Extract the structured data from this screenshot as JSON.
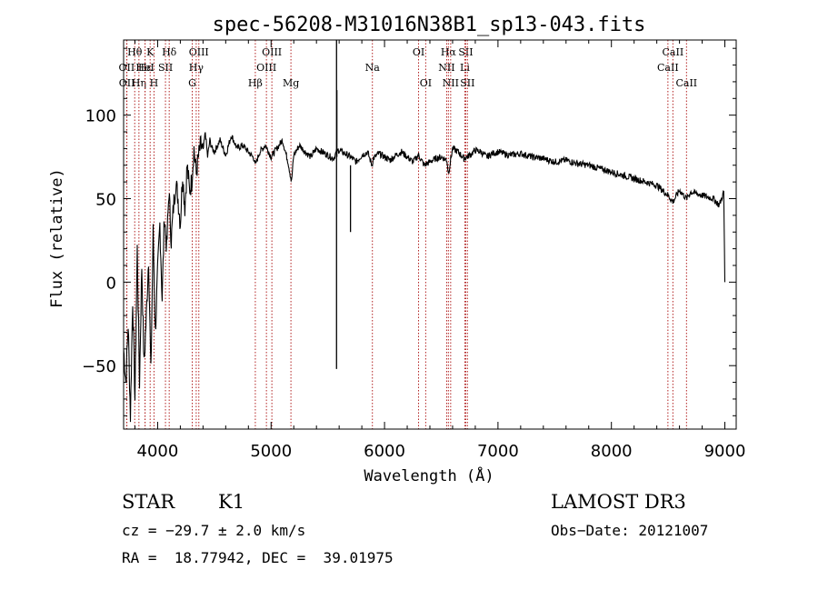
{
  "chart_data": {
    "type": "line",
    "title": "spec-56208-M31016N38B1_sp13-043.fits",
    "xlabel": "Wavelength (Å)",
    "ylabel": "Flux (relative)",
    "xlim": [
      3700,
      9100
    ],
    "ylim": [
      -88,
      145
    ],
    "xticks": [
      4000,
      5000,
      6000,
      7000,
      8000,
      9000
    ],
    "yticks": [
      -50,
      0,
      50,
      100
    ],
    "series": [
      {
        "name": "flux",
        "x": [
          3700,
          3720,
          3740,
          3760,
          3780,
          3800,
          3820,
          3840,
          3860,
          3880,
          3900,
          3920,
          3940,
          3960,
          3980,
          4000,
          4020,
          4040,
          4060,
          4080,
          4100,
          4120,
          4140,
          4160,
          4180,
          4200,
          4220,
          4240,
          4260,
          4280,
          4300,
          4320,
          4340,
          4360,
          4380,
          4400,
          4420,
          4440,
          4460,
          4480,
          4500,
          4550,
          4600,
          4650,
          4700,
          4750,
          4800,
          4850,
          4860,
          4900,
          4950,
          5000,
          5050,
          5100,
          5150,
          5180,
          5200,
          5250,
          5300,
          5350,
          5400,
          5450,
          5500,
          5550,
          5577,
          5600,
          5650,
          5700,
          5750,
          5800,
          5850,
          5890,
          5900,
          5950,
          6000,
          6050,
          6100,
          6150,
          6200,
          6250,
          6300,
          6350,
          6400,
          6450,
          6500,
          6550,
          6563,
          6600,
          6650,
          6700,
          6750,
          6800,
          6850,
          6900,
          6950,
          7000,
          7100,
          7200,
          7300,
          7400,
          7500,
          7600,
          7700,
          7800,
          7900,
          8000,
          8100,
          8200,
          8300,
          8400,
          8500,
          8542,
          8600,
          8662,
          8700,
          8800,
          8900,
          8950,
          8990,
          9000
        ],
        "values": [
          -40,
          -60,
          -25,
          -80,
          -10,
          -70,
          20,
          -60,
          10,
          -50,
          -20,
          15,
          -55,
          30,
          -30,
          5,
          35,
          -10,
          40,
          20,
          55,
          25,
          45,
          60,
          50,
          35,
          65,
          45,
          70,
          55,
          60,
          80,
          65,
          75,
          82,
          78,
          90,
          75,
          85,
          80,
          78,
          85,
          76,
          88,
          80,
          82,
          78,
          74,
          70,
          78,
          82,
          75,
          80,
          85,
          72,
          60,
          76,
          82,
          78,
          75,
          80,
          78,
          76,
          74,
          78,
          79,
          77,
          75,
          72,
          76,
          78,
          70,
          74,
          77,
          75,
          73,
          76,
          78,
          75,
          72,
          76,
          70,
          72,
          74,
          75,
          73,
          65,
          80,
          78,
          74,
          76,
          79,
          78,
          75,
          77,
          78,
          76,
          77,
          75,
          74,
          72,
          73,
          71,
          70,
          68,
          66,
          64,
          62,
          60,
          58,
          52,
          48,
          55,
          50,
          54,
          52,
          50,
          46,
          54,
          0
        ]
      }
    ],
    "emissions": [
      -52,
      115,
      115
    ],
    "lines": [
      {
        "label": "Hθ",
        "wl": 3798,
        "row": 1
      },
      {
        "label": "OII",
        "wl": 3727,
        "row": 2
      },
      {
        "label": "OII",
        "wl": 3729,
        "row": 3
      },
      {
        "label": "Hε",
        "wl": 3889,
        "row": 2
      },
      {
        "label": "Hη",
        "wl": 3835,
        "row": 3
      },
      {
        "label": "K",
        "wl": 3934,
        "row": 1
      },
      {
        "label": "HeI",
        "wl": 3889,
        "row": 2
      },
      {
        "label": "H",
        "wl": 3968,
        "row": 3
      },
      {
        "label": "SII",
        "wl": 4069,
        "row": 2
      },
      {
        "label": "Hδ",
        "wl": 4102,
        "row": 1
      },
      {
        "label": "OIII",
        "wl": 4363,
        "row": 1
      },
      {
        "label": "Hγ",
        "wl": 4340,
        "row": 2
      },
      {
        "label": "G",
        "wl": 4305,
        "row": 3
      },
      {
        "label": "Hβ",
        "wl": 4861,
        "row": 3
      },
      {
        "label": "OIII",
        "wl": 5007,
        "row": 1
      },
      {
        "label": "OIII",
        "wl": 4959,
        "row": 2
      },
      {
        "label": "Mg",
        "wl": 5175,
        "row": 3
      },
      {
        "label": "Na",
        "wl": 5893,
        "row": 2
      },
      {
        "label": "OI",
        "wl": 6300,
        "row": 1
      },
      {
        "label": "OI",
        "wl": 6363,
        "row": 3
      },
      {
        "label": "Hα",
        "wl": 6563,
        "row": 1
      },
      {
        "label": "NII",
        "wl": 6548,
        "row": 2
      },
      {
        "label": "NII",
        "wl": 6583,
        "row": 3
      },
      {
        "label": "SII",
        "wl": 6716,
        "row": 1
      },
      {
        "label": "Li",
        "wl": 6708,
        "row": 2
      },
      {
        "label": "SII",
        "wl": 6731,
        "row": 3
      },
      {
        "label": "CaII",
        "wl": 8542,
        "row": 1
      },
      {
        "label": "CaII",
        "wl": 8498,
        "row": 2
      },
      {
        "label": "CaII",
        "wl": 8662,
        "row": 3
      }
    ],
    "line_color": "#b22222"
  },
  "info": {
    "class": "STAR",
    "subclass": "K1",
    "cz": "cz = −29.7 ± 2.0 km/s",
    "coords": "RA =  18.77942, DEC =  39.01975",
    "survey": "LAMOST DR3",
    "obsdate": "Obs−Date: 20121007"
  }
}
